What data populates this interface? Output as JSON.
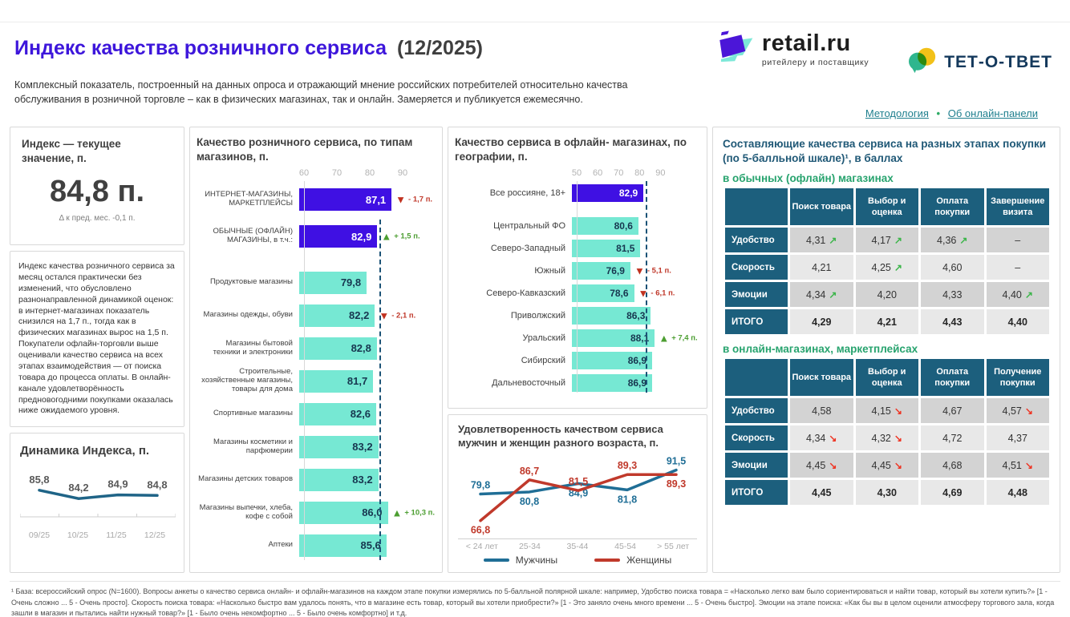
{
  "page": {
    "title": "Индекс качества розничного сервиса",
    "period": "(12/2025)",
    "description": "Комплексный показатель, построенный на данных опроса и отражающий мнение российских потребителей относительно качества обслуживания в розничной торговле – как в физических магазинах, так и онлайн. Замеряется и публикуется ежемесячно.",
    "links": [
      {
        "label": "Методология"
      },
      {
        "label": "Об онлайн-панели"
      }
    ],
    "links_separator": "•",
    "logos": {
      "retail_name": "retail.ru",
      "retail_tagline": "ритейлеру и поставщику",
      "tetotvet_name": "ТЕТ-О-ТВЕТ"
    }
  },
  "index_panel": {
    "title": "Индекс — текущее значение, п.",
    "value": "84,8 п.",
    "delta": "Δ к пред. мес.  -0,1 п."
  },
  "commentary": {
    "text": "Индекс качества розничного сервиса за месяц остался практически без изменений, что обусловлено разнонаправленной динамикой оценок: в интернет-магазинах показатель снизился на 1,7 п., тогда как в физических магазинах вырос на 1,5 п. Покупатели офлайн-торговли выше оценивали качество сервиса на всех этапах взаимодействия — от поиска товара до процесса оплаты. В онлайн-канале удовлетворённость предновогодними покупками оказалась ниже ожидаемого уровня."
  },
  "stages_panel": {
    "title": "Составляющие качества сервиса на разных этапах покупки (по 5-балльной шкале)¹, в баллах"
  },
  "footnote": {
    "text": "¹ База: всероссийский опрос (N=1600). Вопросы анкеты о качество сервиса онлайн- и офлайн-магазинов на каждом этапе покупки измерялись по 5-балльной полярной шкале: например, Удобство поиска товара = «Насколько легко вам было сориентироваться и найти товар, который вы хотели купить?» [1 - Очень сложно ... 5 - Очень просто]. Скорость поиска товара: «Насколько быстро вам удалось понять, что в магазине есть товар, который вы хотели приобрести?» [1 - Это заняло очень много времени ... 5 - Очень быстро]. Эмоции на этапе поиска: «Как бы вы в целом оценили атмосферу торгового зала, когда зашли в магазин и пытались найти нужный товар?» [1 - Было очень некомфортно ... 5 -  Было очень комфортно] и т.д."
  },
  "chart_data": [
    {
      "id": "dynamics",
      "type": "line",
      "title": "Динамика Индекса, п.",
      "categories": [
        "09/25",
        "10/25",
        "11/25",
        "12/25"
      ],
      "values": [
        85.8,
        84.2,
        84.9,
        84.8
      ],
      "labels": [
        "85,8",
        "84,2",
        "84,9",
        "84,8"
      ],
      "line_color": "#1F6487",
      "ylim": [
        83,
        87
      ],
      "grid": false,
      "legend": false
    },
    {
      "id": "types",
      "type": "bar",
      "title": "Качество розничного сервиса, по типам магазинов, п.",
      "orientation": "horizontal",
      "axis_ticks": [
        60,
        70,
        80,
        90
      ],
      "x_min": 60,
      "x_span": 40,
      "ref_line": 82.9,
      "rows": [
        {
          "label": "ИНТЕРНЕТ-МАГАЗИНЫ, МАРКЕТПЛЕЙСЫ",
          "value": 87.1,
          "display": "87,1",
          "color": "purple",
          "tall": true,
          "badge": {
            "dir": "down",
            "text": "- 1,7 п."
          }
        },
        {
          "label": "ОБЫЧНЫЕ (ОФЛАЙН) МАГАЗИНЫ, в т.ч.:",
          "value": 82.9,
          "display": "82,9",
          "color": "purple",
          "tall": true,
          "spacer_after": true,
          "badge": {
            "dir": "up",
            "text": "+ 1,5 п."
          }
        },
        {
          "label": "Продуктовые магазины",
          "value": 79.8,
          "display": "79,8",
          "color": "teal"
        },
        {
          "label": "Магазины одежды, обуви",
          "value": 82.2,
          "display": "82,2",
          "color": "teal",
          "badge": {
            "dir": "down",
            "text": "- 2,1 п."
          }
        },
        {
          "label": "Магазины бытовой техники и электроники",
          "value": 82.8,
          "display": "82,8",
          "color": "teal"
        },
        {
          "label": "Строительные, хозяйственные магазины, товары для дома",
          "value": 81.7,
          "display": "81,7",
          "color": "teal"
        },
        {
          "label": "Спортивные магазины",
          "value": 82.6,
          "display": "82,6",
          "color": "teal"
        },
        {
          "label": "Магазины косметики и парфюмерии",
          "value": 83.2,
          "display": "83,2",
          "color": "teal"
        },
        {
          "label": "Магазины детских товаров",
          "value": 83.2,
          "display": "83,2",
          "color": "teal"
        },
        {
          "label": "Магазины выпечки, хлеба, кофе с собой",
          "value": 86.0,
          "display": "86,0",
          "color": "teal",
          "badge": {
            "dir": "up",
            "text": "+ 10,3 п."
          }
        },
        {
          "label": "Аптеки",
          "value": 85.6,
          "display": "85,6",
          "color": "teal"
        }
      ]
    },
    {
      "id": "geo",
      "type": "bar",
      "title": "Качество сервиса в офлайн- магазинах, по географии, п.",
      "orientation": "horizontal",
      "axis_ticks": [
        50,
        60,
        70,
        80,
        90
      ],
      "x_min": 50,
      "x_span": 59,
      "ref_line": 82.9,
      "rows": [
        {
          "label": "Все россияне, 18+",
          "value": 82.9,
          "display": "82,9",
          "color": "purple",
          "tall": true,
          "spacer_after": true
        },
        {
          "label": "Центральный ФО",
          "value": 80.6,
          "display": "80,6",
          "color": "teal"
        },
        {
          "label": "Северо-Западный",
          "value": 81.5,
          "display": "81,5",
          "color": "teal"
        },
        {
          "label": "Южный",
          "value": 76.9,
          "display": "76,9",
          "color": "teal",
          "badge": {
            "dir": "down",
            "text": "- 5,1 п."
          }
        },
        {
          "label": "Северо-Кавказский",
          "value": 78.6,
          "display": "78,6",
          "color": "teal",
          "badge": {
            "dir": "down",
            "text": "- 6,1 п."
          }
        },
        {
          "label": "Приволжский",
          "value": 86.3,
          "display": "86,3",
          "color": "teal"
        },
        {
          "label": "Уральский",
          "value": 88.1,
          "display": "88,1",
          "color": "teal",
          "badge": {
            "dir": "up",
            "text": "+ 7,4 п."
          }
        },
        {
          "label": "Сибирский",
          "value": 86.9,
          "display": "86,9",
          "color": "teal"
        },
        {
          "label": "Дальневосточный",
          "value": 86.9,
          "display": "86,9",
          "color": "teal"
        }
      ]
    },
    {
      "id": "gender",
      "type": "line",
      "title": "Удовлетворенность качеством сервиса мужчин и женщин разного возраста, п.",
      "categories": [
        "< 24 лет",
        "25-34",
        "35-44",
        "45-54",
        "> 55 лет"
      ],
      "series": [
        {
          "name": "Мужчины",
          "color": "#1F6E96",
          "values": [
            79.8,
            80.8,
            84.9,
            81.8,
            91.5
          ],
          "labels": [
            "79,8",
            "80,8",
            "84,9",
            "81,8",
            "91,5"
          ]
        },
        {
          "name": "Женщины",
          "color": "#C0392B",
          "values": [
            66.8,
            86.7,
            81.5,
            89.3,
            89.3
          ],
          "labels": [
            "66,8",
            "86,7",
            "81,5",
            "89,3",
            "89,3"
          ]
        }
      ],
      "ylim": [
        62,
        98
      ],
      "grid": false,
      "legend": "bottom"
    },
    {
      "id": "offline_stages",
      "type": "table",
      "subtitle": "в обычных (офлайн) магазинах",
      "columns": [
        "Поиск товара",
        "Выбор и оценка",
        "Оплата покупки",
        "Завершение визита"
      ],
      "rows": [
        {
          "label": "Удобство",
          "cells": [
            {
              "v": "4,31",
              "t": "up"
            },
            {
              "v": "4,17",
              "t": "up"
            },
            {
              "v": "4,36",
              "t": "up"
            },
            {
              "v": "–"
            }
          ]
        },
        {
          "label": "Скорость",
          "cells": [
            {
              "v": "4,21"
            },
            {
              "v": "4,25",
              "t": "up"
            },
            {
              "v": "4,60"
            },
            {
              "v": "–"
            }
          ]
        },
        {
          "label": "Эмоции",
          "cells": [
            {
              "v": "4,34",
              "t": "up"
            },
            {
              "v": "4,20"
            },
            {
              "v": "4,33"
            },
            {
              "v": "4,40",
              "t": "up"
            }
          ]
        },
        {
          "label": "ИТОГО",
          "total": true,
          "cells": [
            {
              "v": "4,29"
            },
            {
              "v": "4,21"
            },
            {
              "v": "4,43"
            },
            {
              "v": "4,40"
            }
          ]
        }
      ]
    },
    {
      "id": "online_stages",
      "type": "table",
      "subtitle": "в онлайн-магазинах, маркетплейсах",
      "columns": [
        "Поиск товара",
        "Выбор и оценка",
        "Оплата покупки",
        "Получение покупки"
      ],
      "rows": [
        {
          "label": "Удобство",
          "cells": [
            {
              "v": "4,58"
            },
            {
              "v": "4,15",
              "t": "down"
            },
            {
              "v": "4,67"
            },
            {
              "v": "4,57",
              "t": "down"
            }
          ]
        },
        {
          "label": "Скорость",
          "cells": [
            {
              "v": "4,34",
              "t": "down"
            },
            {
              "v": "4,32",
              "t": "down"
            },
            {
              "v": "4,72"
            },
            {
              "v": "4,37"
            }
          ]
        },
        {
          "label": "Эмоции",
          "cells": [
            {
              "v": "4,45",
              "t": "down"
            },
            {
              "v": "4,45",
              "t": "down"
            },
            {
              "v": "4,68"
            },
            {
              "v": "4,51",
              "t": "down"
            }
          ]
        },
        {
          "label": "ИТОГО",
          "total": true,
          "cells": [
            {
              "v": "4,45"
            },
            {
              "v": "4,30"
            },
            {
              "v": "4,69"
            },
            {
              "v": "4,48"
            }
          ]
        }
      ]
    }
  ]
}
